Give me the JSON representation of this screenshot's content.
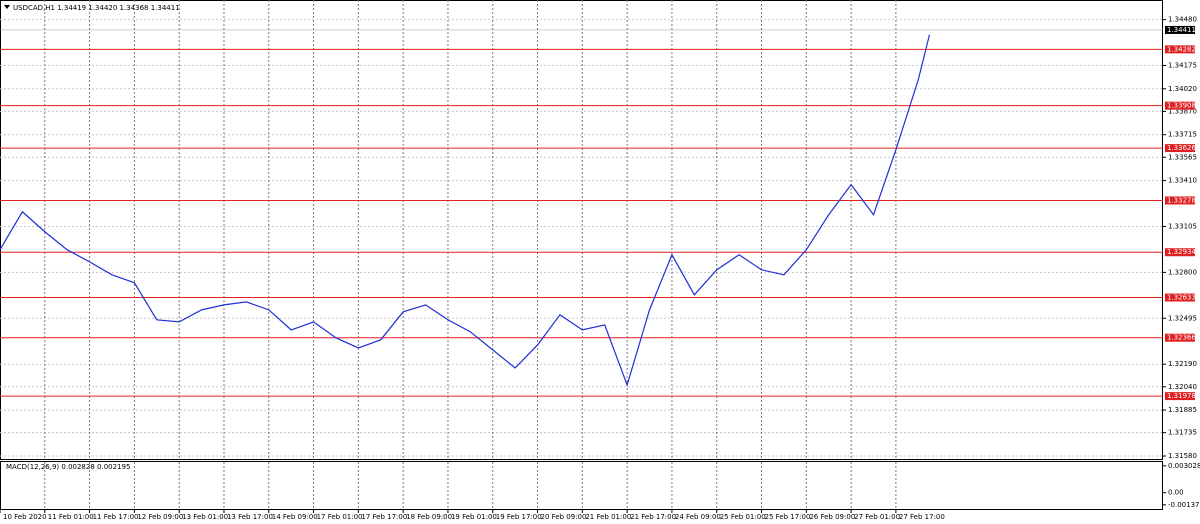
{
  "chart_data": {
    "type": "line",
    "header": "USDCAD,H1  1.34419 1.34420 1.34368 1.34411",
    "color": "#1f2fd6",
    "x": [
      0,
      4,
      8,
      12,
      16,
      20,
      24,
      28,
      32,
      36,
      40,
      44,
      48,
      52,
      56,
      60,
      64,
      68,
      72,
      76,
      80,
      84,
      88,
      92,
      96,
      100,
      104,
      108,
      112,
      116,
      120,
      124,
      128,
      132,
      136,
      140,
      144,
      148,
      152,
      156,
      160,
      164,
      166
    ],
    "values": [
      1.3295,
      1.33203,
      1.3307,
      1.3295,
      1.3287,
      1.32784,
      1.32731,
      1.32485,
      1.32471,
      1.32551,
      1.32584,
      1.32604,
      1.32551,
      1.32418,
      1.32471,
      1.32365,
      1.32298,
      1.32352,
      1.32538,
      1.32584,
      1.32485,
      1.32405,
      1.32285,
      1.32165,
      1.32318,
      1.32518,
      1.32418,
      1.32451,
      1.32052,
      1.32551,
      1.32917,
      1.32651,
      1.32817,
      1.32917,
      1.32817,
      1.32784,
      1.3295,
      1.33183,
      1.33383,
      1.33183,
      1.33615,
      1.34081,
      1.3438
    ],
    "xlim": [
      0,
      207.7
    ],
    "xticks": [
      {
        "value": 0,
        "label": "10 Feb 2020"
      },
      {
        "value": 8,
        "label": "11 Feb 01:00"
      },
      {
        "value": 16,
        "label": "11 Feb 17:00"
      },
      {
        "value": 24,
        "label": "12 Feb 09:00"
      },
      {
        "value": 32,
        "label": "13 Feb 01:00"
      },
      {
        "value": 40,
        "label": "13 Feb 17:00"
      },
      {
        "value": 48,
        "label": "14 Feb 09:00"
      },
      {
        "value": 56,
        "label": "17 Feb 01:00"
      },
      {
        "value": 64,
        "label": "17 Feb 17:00"
      },
      {
        "value": 72,
        "label": "18 Feb 09:00"
      },
      {
        "value": 80,
        "label": "19 Feb 01:00"
      },
      {
        "value": 88,
        "label": "19 Feb 17:00"
      },
      {
        "value": 96,
        "label": "20 Feb 09:00"
      },
      {
        "value": 104,
        "label": "21 Feb 01:00"
      },
      {
        "value": 112,
        "label": "21 Feb 17:00"
      },
      {
        "value": 120,
        "label": "24 Feb 09:00"
      },
      {
        "value": 128,
        "label": "25 Feb 01:00"
      },
      {
        "value": 136,
        "label": "25 Feb 17:00"
      },
      {
        "value": 144,
        "label": "26 Feb 09:00"
      },
      {
        "value": 152,
        "label": "27 Feb 01:00"
      },
      {
        "value": 160,
        "label": "27 Feb 17:00"
      }
    ],
    "ylim": [
      1.3156,
      1.3461
    ],
    "yticks": [
      {
        "value": 1.3448,
        "label": "1.34480"
      },
      1.34175,
      {
        "value": 1.3402,
        "label": "1.34020"
      },
      {
        "value": 1.3387,
        "label": "1.33870"
      },
      1.33715,
      1.33565,
      {
        "value": 1.3341,
        "label": "1.33410"
      },
      1.33105,
      {
        "value": 1.328,
        "label": "1.32800"
      },
      1.32495,
      {
        "value": 1.3219,
        "label": "1.32190"
      },
      {
        "value": 1.3204,
        "label": "1.32040"
      },
      1.31885,
      1.31735,
      {
        "value": 1.3158,
        "label": "1.31580"
      }
    ],
    "grid": true,
    "levels": [
      1.34282,
      1.33908,
      1.33626,
      1.33278,
      1.32934,
      1.32633,
      1.32366,
      1.31978
    ],
    "level_color": "#e02020",
    "last": 1.34411,
    "macd": {
      "label": "MACD(12,26,9) 0.002828 0.002195",
      "ylim": [
        -0.00184,
        0.00346
      ],
      "yticks": [
        0.003028,
        {
          "value": 0,
          "label": "0.00"
        },
        -0.00137
      ]
    }
  }
}
